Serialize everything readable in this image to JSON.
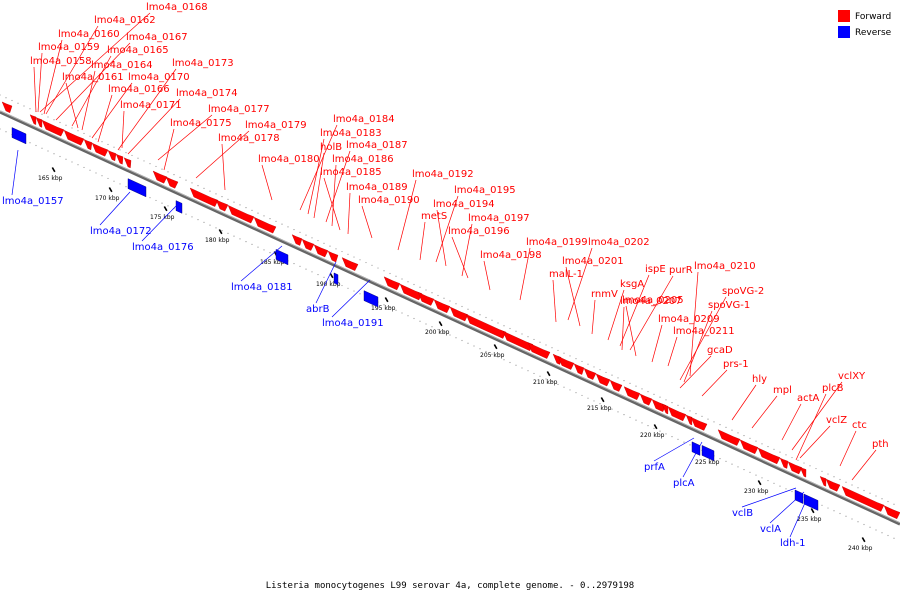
{
  "caption": "Listeria monocytogenes L99 serovar 4a, complete genome. - 0..2979198",
  "legend": [
    {
      "label": "Forward",
      "color": "#ff0000"
    },
    {
      "label": "Reverse",
      "color": "#0000ff"
    }
  ],
  "colors": {
    "forward": "#ff0000",
    "reverse": "#0000ff",
    "backbone": "#777777"
  },
  "ticks": [
    "165 kbp",
    "170 kbp",
    "175 kbp",
    "180 kbp",
    "185 kbp",
    "190 kbp",
    "195 kbp",
    "200 kbp",
    "205 kbp",
    "210 kbp",
    "215 kbp",
    "220 kbp",
    "225 kbp",
    "230 kbp",
    "235 kbp",
    "240 kbp"
  ],
  "forward_labels": [
    "lmo4a_0168",
    "lmo4a_0162",
    "lmo4a_0167",
    "lmo4a_0160",
    "lmo4a_0165",
    "lmo4a_0159",
    "lmo4a_0158",
    "lmo4a_0164",
    "lmo4a_0173",
    "lmo4a_0161",
    "lmo4a_0170",
    "lmo4a_0166",
    "lmo4a_0174",
    "lmo4a_0171",
    "lmo4a_0177",
    "lmo4a_0175",
    "lmo4a_0179",
    "lmo4a_0178",
    "lmo4a_0180",
    "lmo4a_0184",
    "lmo4a_0183",
    "holB",
    "lmo4a_0187",
    "lmo4a_0186",
    "lmo4a_0185",
    "lmo4a_0189",
    "lmo4a_0190",
    "lmo4a_0192",
    "lmo4a_0195",
    "lmo4a_0194",
    "metS",
    "lmo4a_0197",
    "lmo4a_0196",
    "lmo4a_0198",
    "lmo4a_0199",
    "lmo4a_0202",
    "lmo4a_0201",
    "malL-1",
    "ispE",
    "purR",
    "lmo4a_0210",
    "ksgA",
    "lmo4a_0207",
    "rnmV",
    "spoVG-2",
    "lmo4a_0205",
    "spoVG-1",
    "lmo4a_0209",
    "lmo4a_0211",
    "gcaD",
    "prs-1",
    "hly",
    "vclXY",
    "mpl",
    "plcB",
    "actA",
    "vclZ",
    "ctc",
    "pth"
  ],
  "reverse_labels": [
    "lmo4a_0157",
    "lmo4a_0172",
    "lmo4a_0176",
    "lmo4a_0181",
    "abrB",
    "lmo4a_0191",
    "prfA",
    "plcA",
    "vclB",
    "vclA",
    "ldh-1"
  ]
}
